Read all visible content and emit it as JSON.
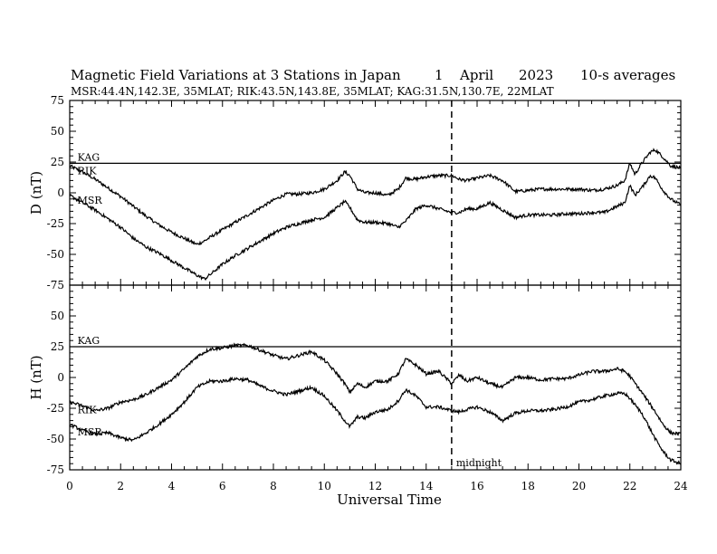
{
  "title": {
    "main": "Magnetic Field Variations at 3 Stations in Japan",
    "day": "1",
    "month": "April",
    "year": "2023",
    "resolution": "10-s averages"
  },
  "subtitle": "MSR:44.4N,142.3E, 35MLAT;  RIK:43.5N,143.8E, 35MLAT;  KAG:31.5N,130.7E, 22MLAT",
  "x_axis": {
    "label": "Universal Time",
    "ticks": [
      "0",
      "2",
      "4",
      "6",
      "8",
      "10",
      "12",
      "14",
      "16",
      "18",
      "20",
      "22",
      "24"
    ]
  },
  "y_ticks": [
    "75",
    "50",
    "25",
    "0",
    "-25",
    "-50",
    "-75"
  ],
  "midnight_label": "midnight",
  "chart_data": [
    {
      "type": "line",
      "panel": "D",
      "ylabel": "D (nT)",
      "xlim": [
        0,
        24
      ],
      "ylim": [
        -75,
        75
      ],
      "grid": false,
      "series": [
        {
          "name": "KAG",
          "x": [
            0,
            24
          ],
          "y": [
            24,
            24
          ]
        },
        {
          "name": "RIK",
          "x": [
            0,
            0.5,
            1,
            1.5,
            2,
            2.5,
            3,
            3.5,
            4,
            4.5,
            5,
            5.3,
            5.6,
            6,
            6.5,
            7,
            7.5,
            8,
            8.5,
            9,
            9.5,
            10,
            10.5,
            10.8,
            11,
            11.3,
            11.6,
            12,
            12.5,
            12.9,
            13.2,
            13.6,
            14,
            14.5,
            15,
            15.3,
            15.6,
            16,
            16.5,
            17,
            17.5,
            18,
            18.5,
            19,
            19.5,
            20,
            20.5,
            21,
            21.5,
            21.8,
            22,
            22.2,
            22.5,
            22.8,
            23,
            23.3,
            23.6,
            24
          ],
          "y": [
            22,
            17,
            11,
            4,
            -3,
            -11,
            -19,
            -26,
            -32,
            -37,
            -42,
            -39,
            -35,
            -30,
            -24,
            -18,
            -12,
            -6,
            -1,
            -1,
            0,
            3,
            10,
            17,
            14,
            3,
            0,
            0,
            -2,
            3,
            12,
            11,
            13,
            14,
            14,
            11,
            10,
            12,
            14,
            10,
            1,
            2,
            3,
            3,
            3,
            3,
            2,
            3,
            6,
            10,
            24,
            15,
            25,
            33,
            35,
            29,
            22,
            20
          ]
        },
        {
          "name": "MSR",
          "x": [
            0,
            0.5,
            1,
            1.5,
            2,
            2.5,
            3,
            3.5,
            4,
            4.5,
            5,
            5.3,
            5.6,
            6,
            6.5,
            7,
            7.5,
            8,
            8.5,
            9,
            9.5,
            10,
            10.5,
            10.8,
            11,
            11.3,
            11.6,
            12,
            12.5,
            12.9,
            13.2,
            13.6,
            14,
            14.5,
            15,
            15.3,
            15.6,
            16,
            16.5,
            17,
            17.5,
            18,
            18.5,
            19,
            19.5,
            20,
            20.5,
            21,
            21.5,
            21.8,
            22,
            22.2,
            22.5,
            22.8,
            23,
            23.3,
            23.6,
            24
          ],
          "y": [
            -2,
            -8,
            -14,
            -21,
            -28,
            -37,
            -44,
            -49,
            -55,
            -61,
            -67,
            -70,
            -65,
            -58,
            -51,
            -45,
            -39,
            -33,
            -28,
            -25,
            -22,
            -20,
            -12,
            -7,
            -12,
            -22,
            -24,
            -24,
            -25,
            -28,
            -23,
            -13,
            -10,
            -13,
            -16,
            -16,
            -13,
            -13,
            -8,
            -14,
            -20,
            -18,
            -18,
            -18,
            -17,
            -17,
            -16,
            -16,
            -11,
            -8,
            6,
            -2,
            5,
            14,
            12,
            2,
            -5,
            -10
          ]
        }
      ],
      "annotations": [
        {
          "text": "KAG",
          "x": 0.2,
          "y": 29
        },
        {
          "text": "RIK",
          "x": 0.2,
          "y": 18
        },
        {
          "text": "MSR",
          "x": 0.2,
          "y": -6
        }
      ]
    },
    {
      "type": "line",
      "panel": "H",
      "ylabel": "H (nT)",
      "xlim": [
        0,
        24
      ],
      "ylim": [
        -75,
        75
      ],
      "grid": false,
      "series": [
        {
          "name": "KAG",
          "x": [
            0,
            24
          ],
          "y": [
            25,
            25
          ]
        },
        {
          "name": "RIK",
          "x": [
            0,
            0.5,
            1,
            1.5,
            2,
            2.5,
            3,
            3.5,
            4,
            4.5,
            5,
            5.5,
            6,
            6.5,
            7,
            7.5,
            8,
            8.5,
            9,
            9.5,
            10,
            10.5,
            10.8,
            11,
            11.3,
            11.6,
            12,
            12.5,
            12.9,
            13.2,
            13.6,
            14,
            14.5,
            15,
            15.3,
            15.6,
            16,
            16.5,
            17,
            17.5,
            18,
            18.5,
            19,
            19.5,
            20,
            20.5,
            21,
            21.5,
            21.8,
            22,
            22.5,
            23,
            23.3,
            23.6,
            24
          ],
          "y": [
            -20,
            -23,
            -27,
            -25,
            -20,
            -18,
            -14,
            -8,
            -2,
            7,
            17,
            23,
            24,
            26,
            26,
            22,
            18,
            15,
            18,
            21,
            14,
            3,
            -5,
            -12,
            -5,
            -8,
            -3,
            -3,
            3,
            15,
            10,
            3,
            5,
            -5,
            2,
            -3,
            0,
            -5,
            -8,
            0,
            0,
            -2,
            -1,
            -1,
            2,
            5,
            5,
            7,
            5,
            1,
            -13,
            -28,
            -38,
            -45,
            -46
          ]
        },
        {
          "name": "MSR",
          "x": [
            0,
            0.5,
            1,
            1.5,
            2,
            2.5,
            3,
            3.5,
            4,
            4.5,
            5,
            5.5,
            6,
            6.5,
            7,
            7.5,
            8,
            8.5,
            9,
            9.5,
            10,
            10.5,
            10.8,
            11,
            11.3,
            11.6,
            12,
            12.5,
            12.9,
            13.2,
            13.6,
            14,
            14.5,
            15,
            15.3,
            15.6,
            16,
            16.5,
            17,
            17.5,
            18,
            18.5,
            19,
            19.5,
            20,
            20.5,
            21,
            21.5,
            21.8,
            22,
            22.5,
            23,
            23.3,
            23.6,
            24
          ],
          "y": [
            -38,
            -43,
            -46,
            -45,
            -49,
            -51,
            -45,
            -38,
            -30,
            -20,
            -8,
            -3,
            -3,
            -1,
            -2,
            -7,
            -11,
            -14,
            -11,
            -8,
            -15,
            -27,
            -35,
            -40,
            -32,
            -33,
            -28,
            -26,
            -19,
            -10,
            -15,
            -24,
            -24,
            -27,
            -28,
            -26,
            -24,
            -28,
            -35,
            -29,
            -27,
            -27,
            -26,
            -24,
            -20,
            -18,
            -15,
            -13,
            -13,
            -17,
            -30,
            -50,
            -60,
            -67,
            -70
          ]
        }
      ],
      "annotations": [
        {
          "text": "KAG",
          "x": 0.2,
          "y": 30
        },
        {
          "text": "RIK",
          "x": 0.2,
          "y": -26
        },
        {
          "text": "MSR",
          "x": 0.2,
          "y": -44
        }
      ]
    }
  ],
  "vertical_marker": {
    "x": 15,
    "label": "midnight",
    "style": "dashed"
  }
}
